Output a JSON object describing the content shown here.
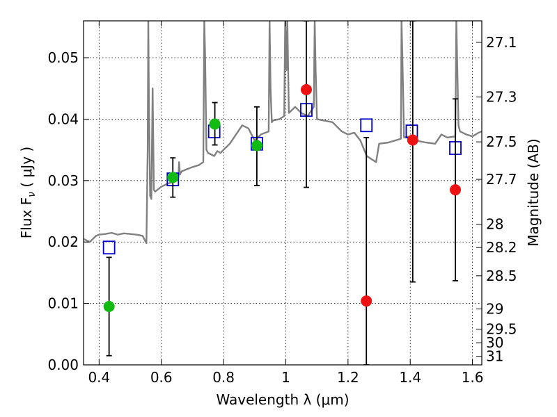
{
  "chart_data": {
    "type": "scatter",
    "title": "",
    "xlabel": "Wavelength  λ (μm)",
    "ylabel": "Flux  F",
    "ylabel_sub": "ν",
    "ylabel_unit": "  ( μJy )",
    "y2label": "Magnitude (AB)",
    "xlim": [
      0.35,
      1.63
    ],
    "ylim": [
      0.0,
      0.056
    ],
    "grid": true,
    "x_ticks": [
      0.4,
      0.6,
      0.8,
      1.0,
      1.2,
      1.4,
      1.6
    ],
    "x_tick_labels": [
      "0.4",
      "0.6",
      "0.8",
      "1",
      "1.2",
      "1.4",
      "1.6"
    ],
    "y_ticks": [
      0.0,
      0.01,
      0.02,
      0.03,
      0.04,
      0.05
    ],
    "y_tick_labels": [
      "0.00",
      "0.01",
      "0.02",
      "0.03",
      "0.04",
      "0.05"
    ],
    "y2_ticks": [
      {
        "label": "27.1",
        "flux": 0.0525
      },
      {
        "label": "27.3",
        "flux": 0.0436
      },
      {
        "label": "27.5",
        "flux": 0.0363
      },
      {
        "label": "27.7",
        "flux": 0.0302
      },
      {
        "label": "28",
        "flux": 0.0229
      },
      {
        "label": "28.2",
        "flux": 0.0191
      },
      {
        "label": "28.5",
        "flux": 0.0145
      },
      {
        "label": "29",
        "flux": 0.0091
      },
      {
        "label": "29.5",
        "flux": 0.0058
      },
      {
        "label": "30",
        "flux": 0.0036
      },
      {
        "label": "31",
        "flux": 0.0014
      }
    ],
    "colors": {
      "sed": "#808080",
      "model": "#0000cc",
      "green": "#11bb11",
      "red": "#ee1111",
      "errorbar": "#000000"
    },
    "sed_spectrum": {
      "x": [
        0.35,
        0.37,
        0.39,
        0.4,
        0.42,
        0.44,
        0.46,
        0.48,
        0.5,
        0.52,
        0.54,
        0.552,
        0.556,
        0.558,
        0.56,
        0.564,
        0.568,
        0.572,
        0.576,
        0.58,
        0.6,
        0.62,
        0.64,
        0.655,
        0.657,
        0.66,
        0.665,
        0.68,
        0.7,
        0.72,
        0.735,
        0.738,
        0.741,
        0.745,
        0.75,
        0.77,
        0.78,
        0.79,
        0.8,
        0.82,
        0.84,
        0.86,
        0.88,
        0.895,
        0.9,
        0.92,
        0.945,
        0.948,
        0.951,
        0.955,
        0.96,
        0.98,
        0.995,
        0.998,
        1.002,
        1.005,
        1.01,
        1.03,
        1.05,
        1.07,
        1.09,
        1.093,
        1.096,
        1.1,
        1.12,
        1.15,
        1.18,
        1.2,
        1.22,
        1.24,
        1.26,
        1.29,
        1.3,
        1.33,
        1.37,
        1.372,
        1.375,
        1.38,
        1.4,
        1.42,
        1.45,
        1.48,
        1.5,
        1.52,
        1.545,
        1.548,
        1.552,
        1.555,
        1.56,
        1.58,
        1.6,
        1.62,
        1.63
      ],
      "y": [
        0.0205,
        0.02,
        0.021,
        0.0212,
        0.0213,
        0.0215,
        0.0212,
        0.0214,
        0.0213,
        0.0212,
        0.021,
        0.0198,
        0.035,
        0.056,
        0.044,
        0.0275,
        0.027,
        0.045,
        0.0285,
        0.0282,
        0.029,
        0.0295,
        0.0298,
        0.0305,
        0.033,
        0.031,
        0.0315,
        0.0318,
        0.0322,
        0.0325,
        0.033,
        0.056,
        0.05,
        0.035,
        0.0345,
        0.034,
        0.0348,
        0.0345,
        0.035,
        0.036,
        0.0375,
        0.039,
        0.0385,
        0.037,
        0.0365,
        0.0375,
        0.038,
        0.056,
        0.045,
        0.0395,
        0.0398,
        0.04,
        0.0405,
        0.056,
        0.048,
        0.056,
        0.041,
        0.042,
        0.041,
        0.0405,
        0.042,
        0.056,
        0.048,
        0.04,
        0.0398,
        0.0395,
        0.038,
        0.0375,
        0.0378,
        0.0365,
        0.034,
        0.033,
        0.036,
        0.0362,
        0.0368,
        0.056,
        0.05,
        0.037,
        0.0372,
        0.0365,
        0.0362,
        0.036,
        0.0375,
        0.037,
        0.0372,
        0.056,
        0.047,
        0.039,
        0.038,
        0.0375,
        0.0372,
        0.0378,
        0.038
      ]
    },
    "model_points": {
      "x": [
        0.432,
        0.637,
        0.77,
        0.907,
        1.066,
        1.259,
        1.405,
        1.545
      ],
      "y": [
        0.0191,
        0.0302,
        0.038,
        0.036,
        0.0415,
        0.039,
        0.038,
        0.0353
      ]
    },
    "observed_points": [
      {
        "x": 0.432,
        "y": 0.0095,
        "err_low": 0.0015,
        "err_high": 0.0175,
        "color": "green"
      },
      {
        "x": 0.637,
        "y": 0.0305,
        "err_low": 0.0273,
        "err_high": 0.0337,
        "color": "green"
      },
      {
        "x": 0.772,
        "y": 0.0392,
        "err_low": 0.0358,
        "err_high": 0.0427,
        "color": "green"
      },
      {
        "x": 0.907,
        "y": 0.0357,
        "err_low": 0.0292,
        "err_high": 0.042,
        "color": "green"
      },
      {
        "x": 1.066,
        "y": 0.0448,
        "err_low": 0.0289,
        "err_high": 0.056,
        "color": "red"
      },
      {
        "x": 1.259,
        "y": 0.0104,
        "err_low": 0.0,
        "err_high": 0.037,
        "color": "red"
      },
      {
        "x": 1.408,
        "y": 0.0366,
        "err_low": 0.0135,
        "err_high": 0.056,
        "color": "red"
      },
      {
        "x": 1.545,
        "y": 0.0285,
        "err_low": 0.0137,
        "err_high": 0.0433,
        "color": "red"
      }
    ]
  }
}
